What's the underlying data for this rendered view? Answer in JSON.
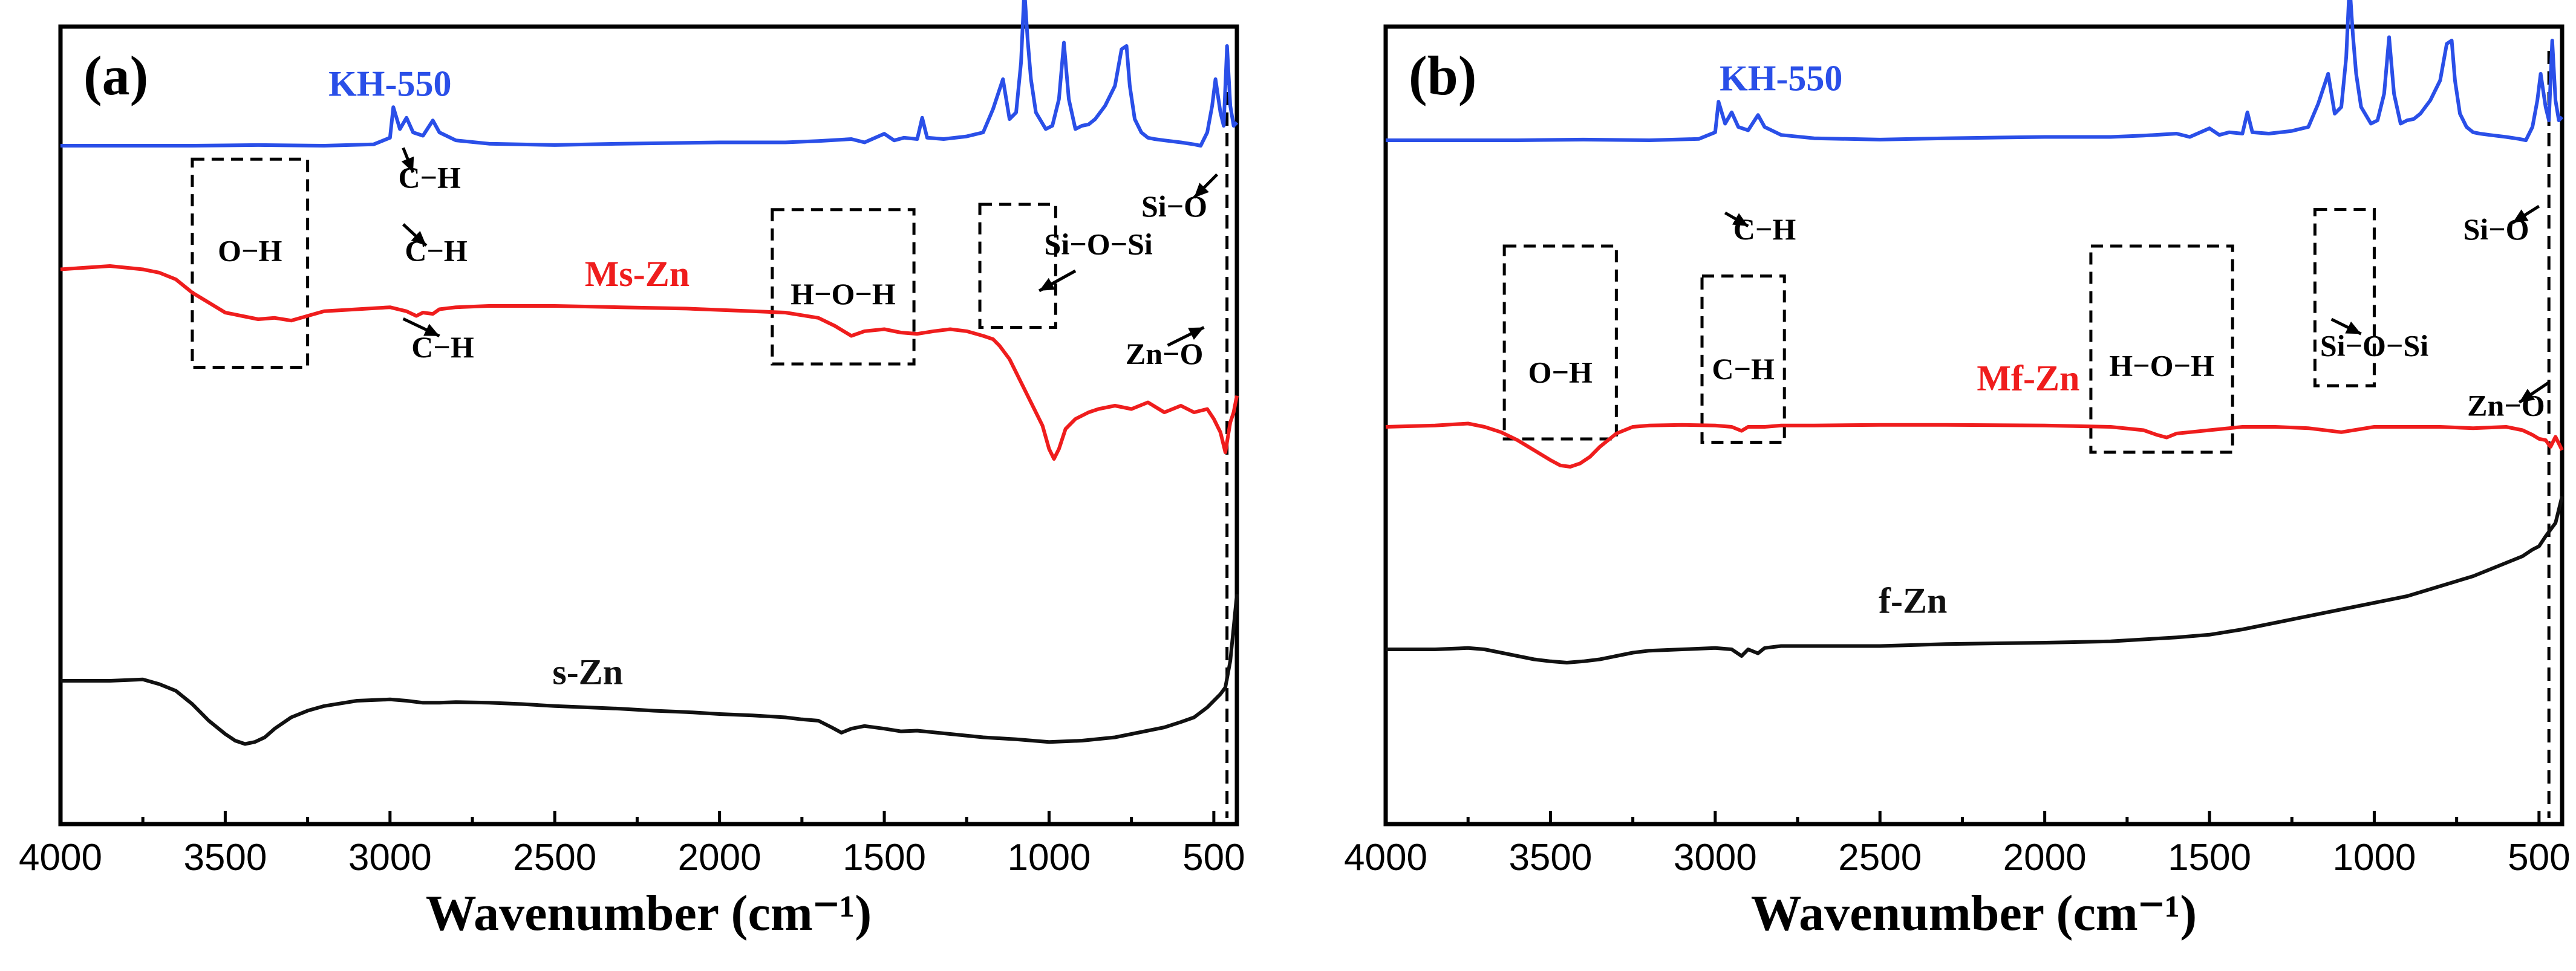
{
  "chart_data": [
    {
      "panel": "(a)",
      "type": "line",
      "xlabel": "Wavenumber (cm⁻¹)",
      "ylabel": "",
      "xlim": [
        4000,
        430
      ],
      "xticks": [
        4000,
        3500,
        3000,
        2500,
        2000,
        1500,
        1000,
        500
      ],
      "ref_line_x": 460,
      "series": [
        {
          "name": "KH-550",
          "color": "#2a4fe8",
          "x": [
            4000,
            3800,
            3600,
            3400,
            3200,
            3050,
            3000,
            2990,
            2970,
            2950,
            2930,
            2900,
            2870,
            2850,
            2800,
            2700,
            2500,
            2300,
            2000,
            1800,
            1700,
            1600,
            1560,
            1500,
            1470,
            1440,
            1400,
            1385,
            1370,
            1320,
            1250,
            1200,
            1170,
            1140,
            1120,
            1100,
            1085,
            1075,
            1065,
            1055,
            1040,
            1010,
            990,
            970,
            955,
            940,
            920,
            900,
            880,
            860,
            830,
            800,
            780,
            765,
            755,
            740,
            720,
            700,
            680,
            650,
            600,
            560,
            540,
            520,
            505,
            495,
            480,
            470,
            460,
            450,
            440,
            430
          ],
          "y": [
            0.0,
            0.0,
            0.0,
            0.01,
            0.0,
            0.02,
            0.12,
            0.58,
            0.25,
            0.42,
            0.2,
            0.15,
            0.38,
            0.2,
            0.08,
            0.03,
            0.01,
            0.03,
            0.05,
            0.05,
            0.07,
            0.1,
            0.05,
            0.18,
            0.08,
            0.12,
            0.1,
            0.42,
            0.12,
            0.1,
            0.14,
            0.2,
            0.55,
            1.0,
            0.4,
            0.5,
            1.25,
            2.35,
            1.6,
            1.0,
            0.5,
            0.25,
            0.3,
            0.7,
            1.55,
            0.7,
            0.25,
            0.3,
            0.32,
            0.4,
            0.6,
            0.9,
            1.45,
            1.5,
            0.9,
            0.4,
            0.2,
            0.12,
            0.1,
            0.08,
            0.05,
            0.02,
            0.0,
            0.2,
            0.6,
            1.0,
            0.5,
            0.3,
            1.5,
            0.6,
            0.3,
            0.35
          ]
        },
        {
          "name": "Ms-Zn",
          "color": "#ef1d1d",
          "x": [
            4000,
            3850,
            3750,
            3700,
            3650,
            3600,
            3550,
            3500,
            3450,
            3400,
            3350,
            3300,
            3250,
            3200,
            3100,
            3000,
            2950,
            2920,
            2900,
            2870,
            2850,
            2800,
            2700,
            2600,
            2500,
            2300,
            2100,
            1900,
            1800,
            1700,
            1650,
            1600,
            1560,
            1500,
            1450,
            1400,
            1350,
            1300,
            1250,
            1200,
            1170,
            1150,
            1120,
            1100,
            1080,
            1060,
            1040,
            1020,
            1000,
            985,
            970,
            950,
            920,
            880,
            850,
            800,
            750,
            700,
            650,
            600,
            560,
            520,
            500,
            480,
            465,
            450,
            440,
            430
          ],
          "y": [
            1.55,
            1.6,
            1.55,
            1.5,
            1.4,
            1.2,
            1.05,
            0.9,
            0.85,
            0.8,
            0.82,
            0.78,
            0.85,
            0.92,
            0.95,
            0.98,
            0.92,
            0.85,
            0.9,
            0.88,
            0.95,
            0.98,
            1.0,
            1.0,
            1.0,
            0.98,
            0.96,
            0.92,
            0.9,
            0.82,
            0.7,
            0.55,
            0.62,
            0.65,
            0.6,
            0.58,
            0.62,
            0.65,
            0.62,
            0.55,
            0.5,
            0.4,
            0.2,
            0.0,
            -0.2,
            -0.4,
            -0.6,
            -0.8,
            -1.15,
            -1.3,
            -1.15,
            -0.85,
            -0.7,
            -0.6,
            -0.55,
            -0.5,
            -0.55,
            -0.45,
            -0.6,
            -0.5,
            -0.6,
            -0.55,
            -0.7,
            -0.9,
            -1.2,
            -0.75,
            -0.6,
            -0.35
          ]
        },
        {
          "name": "s-Zn",
          "color": "#111111",
          "x": [
            4000,
            3850,
            3750,
            3700,
            3650,
            3600,
            3550,
            3500,
            3470,
            3440,
            3410,
            3380,
            3350,
            3300,
            3250,
            3200,
            3100,
            3000,
            2950,
            2900,
            2850,
            2800,
            2700,
            2600,
            2500,
            2400,
            2300,
            2200,
            2100,
            2000,
            1900,
            1800,
            1750,
            1700,
            1660,
            1630,
            1600,
            1560,
            1500,
            1450,
            1400,
            1300,
            1200,
            1100,
            1000,
            900,
            800,
            700,
            650,
            600,
            560,
            520,
            500,
            480,
            465,
            450,
            440,
            430
          ],
          "y": [
            0.0,
            0.0,
            0.02,
            -0.05,
            -0.15,
            -0.35,
            -0.6,
            -0.8,
            -0.9,
            -0.95,
            -0.92,
            -0.85,
            -0.72,
            -0.55,
            -0.45,
            -0.38,
            -0.3,
            -0.28,
            -0.3,
            -0.33,
            -0.33,
            -0.32,
            -0.33,
            -0.35,
            -0.38,
            -0.4,
            -0.42,
            -0.45,
            -0.47,
            -0.5,
            -0.52,
            -0.55,
            -0.58,
            -0.6,
            -0.7,
            -0.78,
            -0.72,
            -0.68,
            -0.72,
            -0.76,
            -0.75,
            -0.8,
            -0.85,
            -0.88,
            -0.92,
            -0.9,
            -0.85,
            -0.75,
            -0.7,
            -0.62,
            -0.55,
            -0.4,
            -0.3,
            -0.2,
            -0.1,
            0.3,
            0.8,
            1.3
          ]
        }
      ],
      "series_labels": [
        {
          "text": "KH-550",
          "x": 3000,
          "y": 0.75,
          "color": "#2a4fe8"
        },
        {
          "text": "Ms-Zn",
          "x": 2250,
          "y": 1.3,
          "color": "#ef1d1d"
        },
        {
          "text": "s-Zn",
          "x": 2400,
          "y": -0.05,
          "color": "#111111"
        }
      ],
      "band_boxes": [
        {
          "label": "O−H",
          "x_from": 3600,
          "x_to": 3250,
          "y_top": 1.98,
          "y_bottom": -1.15,
          "label_y": 0.45
        },
        {
          "label": "H−O−H",
          "x_from": 1840,
          "x_to": 1410,
          "y_top": 1.22,
          "y_bottom": -1.1,
          "label_y": -0.2
        },
        {
          "label": "",
          "x_from": 1210,
          "x_to": 980,
          "y_top": 1.3,
          "y_bottom": -0.55,
          "label_y": 0
        }
      ],
      "annotations": [
        {
          "text": "C−H",
          "x": 2880,
          "y": 1.55,
          "arrow_from": [
            2960,
            2.15
          ],
          "arrow_to": [
            2930,
            1.78
          ]
        },
        {
          "text": "C−H",
          "x": 2860,
          "y": 0.45,
          "arrow_from": [
            2960,
            1.0
          ],
          "arrow_to": [
            2890,
            0.68
          ]
        },
        {
          "text": "C−H",
          "x": 2840,
          "y": -1.0,
          "arrow_from": [
            2960,
            -0.42
          ],
          "arrow_to": [
            2850,
            -0.68
          ]
        },
        {
          "text": "Si−O",
          "x": 620,
          "y": 1.12,
          "arrow_from": [
            490,
            1.75
          ],
          "arrow_to": [
            560,
            1.4
          ]
        },
        {
          "text": "Si−O−Si",
          "x": 850,
          "y": 0.55,
          "arrow_from": [
            920,
            0.3
          ],
          "arrow_to": [
            1030,
            0.0
          ]
        },
        {
          "text": "Zn−O",
          "x": 650,
          "y": -1.1,
          "arrow_from": [
            640,
            -0.82
          ],
          "arrow_to": [
            530,
            -0.55
          ]
        }
      ],
      "ylim": [
        -1.7,
        3.0
      ]
    },
    {
      "panel": "(b)",
      "type": "line",
      "xlabel": "Wavenumber (cm⁻¹)",
      "ylabel": "",
      "xlim": [
        4000,
        430
      ],
      "xticks": [
        4000,
        3500,
        3000,
        2500,
        2000,
        1500,
        1000,
        500
      ],
      "ref_line_x": 470,
      "series": [
        {
          "name": "KH-550",
          "color": "#2a4fe8",
          "x": [
            4000,
            3800,
            3600,
            3400,
            3200,
            3050,
            3000,
            2990,
            2970,
            2950,
            2930,
            2900,
            2870,
            2850,
            2800,
            2700,
            2500,
            2300,
            2000,
            1800,
            1700,
            1600,
            1560,
            1500,
            1470,
            1440,
            1400,
            1385,
            1370,
            1320,
            1250,
            1200,
            1170,
            1140,
            1120,
            1100,
            1085,
            1075,
            1065,
            1055,
            1040,
            1010,
            990,
            970,
            955,
            940,
            920,
            900,
            880,
            860,
            830,
            800,
            780,
            765,
            755,
            740,
            720,
            700,
            680,
            650,
            600,
            560,
            540,
            520,
            505,
            495,
            480,
            470,
            460,
            450,
            440,
            430
          ],
          "y": [
            0.0,
            0.0,
            0.0,
            0.01,
            0.0,
            0.02,
            0.12,
            0.58,
            0.25,
            0.42,
            0.2,
            0.15,
            0.38,
            0.2,
            0.08,
            0.03,
            0.01,
            0.03,
            0.05,
            0.05,
            0.07,
            0.1,
            0.05,
            0.18,
            0.08,
            0.12,
            0.1,
            0.42,
            0.12,
            0.1,
            0.14,
            0.2,
            0.55,
            1.0,
            0.4,
            0.5,
            1.25,
            2.35,
            1.6,
            1.0,
            0.5,
            0.25,
            0.3,
            0.7,
            1.55,
            0.7,
            0.25,
            0.3,
            0.32,
            0.4,
            0.6,
            0.9,
            1.45,
            1.5,
            0.9,
            0.4,
            0.2,
            0.12,
            0.1,
            0.08,
            0.05,
            0.02,
            0.0,
            0.2,
            0.6,
            1.0,
            0.5,
            0.3,
            1.5,
            0.6,
            0.3,
            0.35
          ]
        },
        {
          "name": "Mf-Zn",
          "color": "#ef1d1d",
          "x": [
            4000,
            3850,
            3750,
            3700,
            3650,
            3600,
            3550,
            3500,
            3470,
            3440,
            3410,
            3380,
            3350,
            3300,
            3250,
            3200,
            3100,
            3000,
            2950,
            2920,
            2900,
            2850,
            2800,
            2700,
            2500,
            2300,
            2000,
            1800,
            1700,
            1660,
            1630,
            1600,
            1560,
            1500,
            1400,
            1300,
            1200,
            1100,
            1000,
            900,
            800,
            700,
            600,
            550,
            520,
            500,
            480,
            465,
            450,
            440,
            430
          ],
          "y": [
            0.0,
            0.02,
            0.05,
            0.0,
            -0.08,
            -0.2,
            -0.35,
            -0.5,
            -0.58,
            -0.6,
            -0.55,
            -0.45,
            -0.3,
            -0.1,
            0.0,
            0.02,
            0.03,
            0.02,
            0.0,
            -0.06,
            0.0,
            0.0,
            0.02,
            0.02,
            0.03,
            0.03,
            0.02,
            0.0,
            -0.05,
            -0.12,
            -0.16,
            -0.1,
            -0.08,
            -0.05,
            0.0,
            0.0,
            -0.02,
            -0.08,
            0.0,
            0.0,
            0.0,
            -0.02,
            0.0,
            -0.05,
            -0.12,
            -0.18,
            -0.2,
            -0.3,
            -0.15,
            -0.25,
            -0.35
          ]
        },
        {
          "name": "f-Zn",
          "color": "#111111",
          "x": [
            4000,
            3850,
            3750,
            3700,
            3650,
            3600,
            3550,
            3500,
            3450,
            3400,
            3350,
            3300,
            3250,
            3200,
            3100,
            3000,
            2950,
            2920,
            2900,
            2870,
            2850,
            2800,
            2700,
            2500,
            2300,
            2000,
            1800,
            1700,
            1600,
            1500,
            1400,
            1300,
            1200,
            1100,
            1000,
            900,
            800,
            700,
            600,
            550,
            520,
            500,
            480,
            465,
            450,
            440,
            430
          ],
          "y": [
            0.0,
            0.0,
            0.02,
            0.0,
            -0.05,
            -0.1,
            -0.15,
            -0.18,
            -0.2,
            -0.18,
            -0.15,
            -0.1,
            -0.05,
            -0.02,
            0.0,
            0.02,
            0.0,
            -0.1,
            0.0,
            -0.06,
            0.02,
            0.05,
            0.05,
            0.05,
            0.08,
            0.1,
            0.12,
            0.15,
            0.18,
            0.22,
            0.3,
            0.4,
            0.5,
            0.6,
            0.7,
            0.8,
            0.95,
            1.1,
            1.3,
            1.4,
            1.5,
            1.55,
            1.7,
            1.8,
            1.9,
            2.1,
            2.3
          ]
        }
      ],
      "series_labels": [
        {
          "text": "KH-550",
          "x": 2800,
          "y": 0.75,
          "color": "#2a4fe8"
        },
        {
          "text": "Mf-Zn",
          "x": 2050,
          "y": 0.55,
          "color": "#ef1d1d"
        },
        {
          "text": "f-Zn",
          "x": 2400,
          "y": 0.55,
          "color": "#111111"
        }
      ],
      "band_boxes": [
        {
          "label": "O−H",
          "x_from": 3640,
          "x_to": 3300,
          "y_top": 1.5,
          "y_bottom": -1.4,
          "label_y": -0.55
        },
        {
          "label": "C−H",
          "x_from": 3040,
          "x_to": 2790,
          "y_top": 1.05,
          "y_bottom": -1.45,
          "label_y": -0.5
        },
        {
          "label": "H−O−H",
          "x_from": 1860,
          "x_to": 1430,
          "y_top": 1.5,
          "y_bottom": -1.6,
          "label_y": -0.45
        },
        {
          "label": "",
          "x_from": 1180,
          "x_to": 1000,
          "y_top": 2.05,
          "y_bottom": -0.6,
          "label_y": 0
        }
      ],
      "annotations": [
        {
          "text": "C−H",
          "x": 2850,
          "y": 1.6,
          "arrow_from": [
            2970,
            2.0
          ],
          "arrow_to": [
            2900,
            1.8
          ]
        },
        {
          "text": "Si−O",
          "x": 630,
          "y": 1.6,
          "arrow_from": [
            500,
            2.1
          ],
          "arrow_to": [
            580,
            1.85
          ]
        },
        {
          "text": "Si−O−Si",
          "x": 1000,
          "y": -0.15,
          "arrow_from": [
            1130,
            0.4
          ],
          "arrow_to": [
            1040,
            0.18
          ]
        },
        {
          "text": "Zn−O",
          "x": 600,
          "y": -1.05,
          "arrow_from": [
            470,
            -0.55
          ],
          "arrow_to": [
            560,
            -0.85
          ]
        }
      ],
      "ylim": [
        -2.0,
        2.9
      ]
    }
  ]
}
